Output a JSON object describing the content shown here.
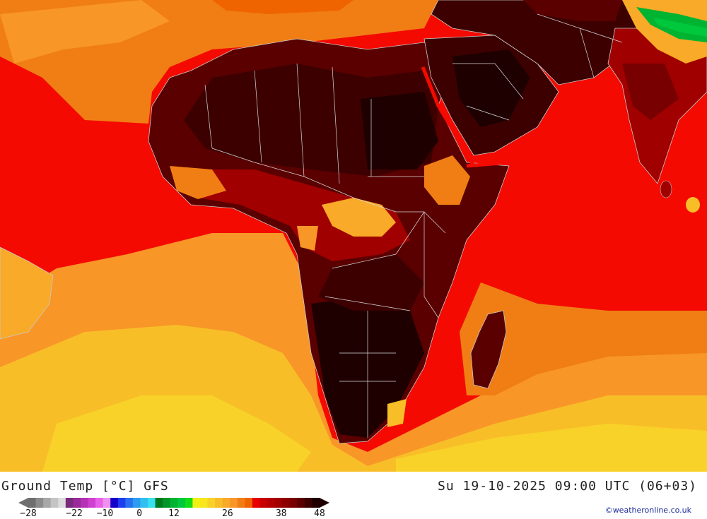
{
  "footer": {
    "title": "Ground Temp [°C] GFS",
    "datetime": "Su 19-10-2025 09:00 UTC (06+03)",
    "credit": "©weatheronline.co.uk"
  },
  "legend": {
    "colors": [
      "#6f6f6f",
      "#8c8c8c",
      "#a8a8a8",
      "#c4c4c4",
      "#dcdcdc",
      "#7a2a7a",
      "#9a2a9a",
      "#b432b4",
      "#d040d0",
      "#e860e8",
      "#f090f0",
      "#1400c8",
      "#1e3cf0",
      "#2870f0",
      "#2c9cf0",
      "#30c0f0",
      "#38e0f0",
      "#00781e",
      "#009628",
      "#00b432",
      "#00c83c",
      "#14dc14",
      "#f0f014",
      "#f8e61e",
      "#f8d228",
      "#f8be28",
      "#f8aa28",
      "#f89628",
      "#f07e14",
      "#f06400",
      "#e60000",
      "#c80000",
      "#b40000",
      "#a00000",
      "#8c0000",
      "#780000",
      "#5a0000",
      "#3c0000",
      "#1e0000"
    ],
    "ticks": [
      {
        "label": "-28",
        "pos": 0
      },
      {
        "label": "-22",
        "pos": 0.1579
      },
      {
        "label": "-10",
        "pos": 0.2632
      },
      {
        "label": "0",
        "pos": 0.3816
      },
      {
        "label": "12",
        "pos": 0.5
      },
      {
        "label": "26",
        "pos": 0.6842
      },
      {
        "label": "38",
        "pos": 0.8684
      },
      {
        "label": "48",
        "pos": 1
      }
    ]
  },
  "map": {
    "palette": {
      "ocean_warm": "#f40a00",
      "ocean_mid": "#f07e14",
      "ocean_cool": "#f8be28",
      "ocean_cold": "#f8d228",
      "land_hot": "#3c0000",
      "land_very_hot": "#1e0000",
      "land_red": "#a00000",
      "highland": "#f8aa28",
      "vegetation": "#00b432",
      "borders": "#c8c8c8"
    }
  }
}
